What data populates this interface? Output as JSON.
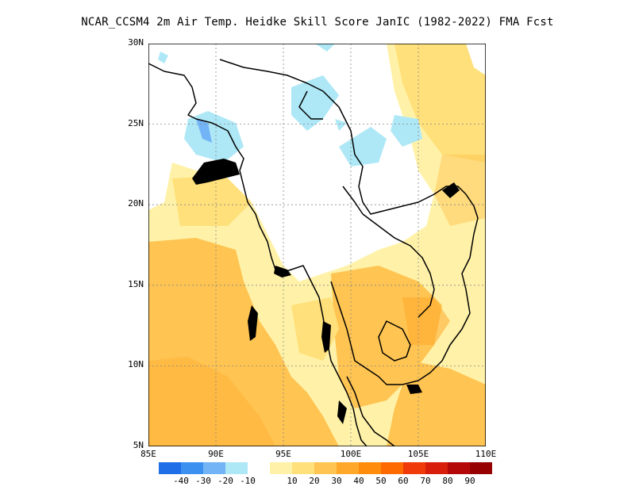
{
  "title": "NCAR_CCSM4  2m Air Temp. Heidke Skill Score JanIC (1982-2022) FMA Fcst",
  "y_ticks": [
    "30N",
    "25N",
    "20N",
    "15N",
    "10N",
    "5N"
  ],
  "x_ticks": [
    "85E",
    "90E",
    "95E",
    "100E",
    "105E",
    "110E"
  ],
  "colorbar": {
    "colors": [
      "#1f6ee8",
      "#3b90f0",
      "#73b4f6",
      "#aee8f6",
      "#ffffff",
      "#fff2a8",
      "#ffe07a",
      "#ffc451",
      "#ffa82a",
      "#ff8c0a",
      "#ff6a00",
      "#f03a0a",
      "#d81e0a",
      "#b40808",
      "#960000"
    ],
    "labels": [
      "-40",
      "-30",
      "-20",
      "-10",
      "10",
      "20",
      "30",
      "40",
      "50",
      "60",
      "70",
      "80",
      "90"
    ]
  },
  "map_extent": {
    "lon_min": 85,
    "lon_max": 110,
    "lat_min": 5,
    "lat_max": 30
  },
  "legend_colors": {
    "white": "#ffffff",
    "light_blue": "#aee8f6",
    "mid_blue": "#73b4f6",
    "light_yellow": "#fff2a8",
    "yellow": "#ffe07a",
    "orange_light": "#ffc451",
    "orange": "#ffa82a"
  }
}
